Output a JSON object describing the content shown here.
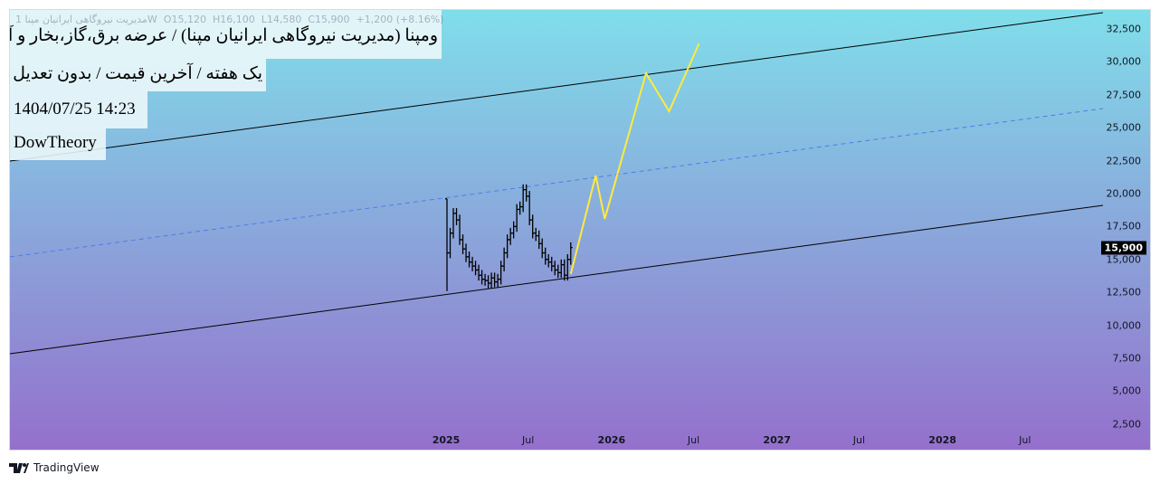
{
  "legend": {
    "symbol_name": "مدیریت نیروگاهی ایرانیان مپنا",
    "interval": "1W",
    "open": "O15,120",
    "high": "H16,100",
    "low": "L14,580",
    "close": "C15,900",
    "change": "+1,200 (+8.16%)"
  },
  "labels": {
    "title": "ومپنا (مدیریت نیروگاهی ایرانیان مپنا) / عرضه برق،گاز،بخار و آب گرم",
    "subtitle": "یک هفته / آخرین قیمت / بدون تعدیل",
    "datetime": "1404/07/25 14:23",
    "author": "DowTheory"
  },
  "colors": {
    "bg_top": "#80deea",
    "bg_bottom": "#9470cc",
    "projection": "#ffeb3b",
    "midline": "#4f7de8",
    "channel": "#000000"
  },
  "chart_data": {
    "type": "line",
    "price_axis": {
      "ticks": [
        "32,500",
        "30,000",
        "27,500",
        "25,000",
        "22,500",
        "20,000",
        "17,500",
        "15,000",
        "12,500",
        "10,000",
        "7,500",
        "5,000",
        "2,500"
      ],
      "range": [
        2500,
        32500
      ],
      "last_price": "15,900"
    },
    "time_axis": {
      "ticks": [
        {
          "label": "2025",
          "date": "2025-01-01",
          "major": true
        },
        {
          "label": "Jul",
          "date": "2025-07-01"
        },
        {
          "label": "2026",
          "date": "2026-01-01",
          "major": true
        },
        {
          "label": "Jul",
          "date": "2026-07-01"
        },
        {
          "label": "2027",
          "date": "2027-01-01",
          "major": true
        },
        {
          "label": "Jul",
          "date": "2027-07-01"
        },
        {
          "label": "2028",
          "date": "2028-01-01",
          "major": true
        },
        {
          "label": "Jul",
          "date": "2028-07-01"
        }
      ]
    },
    "candles": {
      "interval": "1W",
      "start_date": "2025-01-01",
      "first_bar": {
        "open": 19600,
        "high": 19600,
        "low": 12600,
        "close": 15500
      },
      "closes": [
        15500,
        17000,
        18500,
        18000,
        16500,
        15800,
        15200,
        14800,
        14500,
        14200,
        13800,
        13500,
        13400,
        13200,
        13600,
        13300,
        13500,
        14500,
        15500,
        16500,
        17000,
        17500,
        18800,
        19000,
        20300,
        19800,
        18000,
        17000,
        16800,
        16200,
        15500,
        15000,
        14800,
        14500,
        14200,
        14000,
        14600,
        13800,
        15000,
        15900
      ]
    },
    "channel_upper": [
      {
        "date": "2022-05-15",
        "price": 22470
      },
      {
        "date": "2028-12-20",
        "price": 33740
      }
    ],
    "channel_mid": [
      {
        "date": "2022-05-15",
        "price": 15190
      },
      {
        "date": "2028-12-20",
        "price": 26460
      }
    ],
    "channel_lower": [
      {
        "date": "2022-05-15",
        "price": 7840
      },
      {
        "date": "2028-12-20",
        "price": 19110
      }
    ],
    "projection": [
      {
        "date": "2025-10-03",
        "price": 13890
      },
      {
        "date": "2025-11-27",
        "price": 21370
      },
      {
        "date": "2025-12-17",
        "price": 18080
      },
      {
        "date": "2026-03-18",
        "price": 29140
      },
      {
        "date": "2026-05-08",
        "price": 26250
      },
      {
        "date": "2026-07-13",
        "price": 31400
      }
    ]
  },
  "footer": {
    "brand": "TradingView"
  }
}
